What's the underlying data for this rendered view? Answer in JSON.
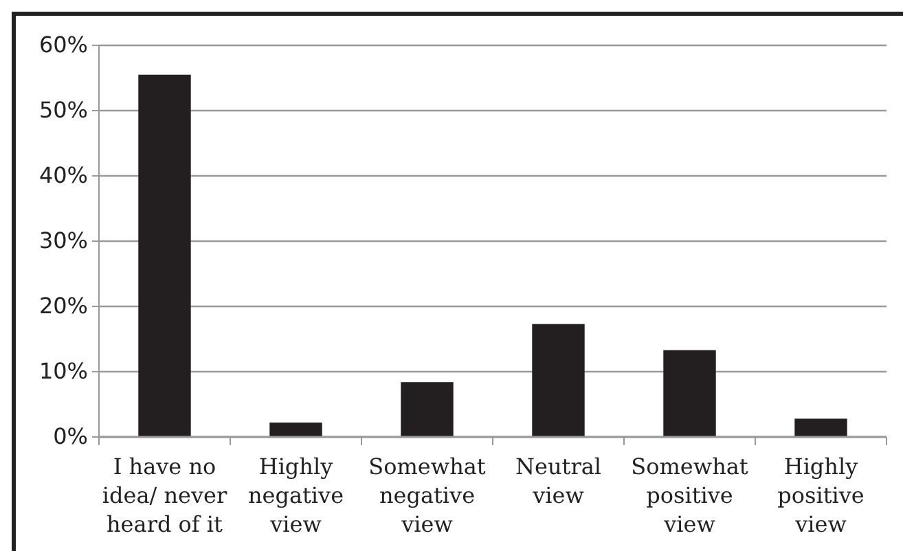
{
  "chart_data": {
    "type": "bar",
    "categories": [
      "I have no idea/ never heard of it",
      "Highly negative view",
      "Somewhat negative view",
      "Neutral view",
      "Somewhat positive view",
      "Highly positive view"
    ],
    "values": [
      0.555,
      0.022,
      0.084,
      0.173,
      0.133,
      0.028
    ],
    "color": "#231f20",
    "ylim": [
      0,
      0.6
    ],
    "yticks": [
      {
        "value": 0,
        "label": "0%"
      },
      {
        "value": 0.1,
        "label": "10%"
      },
      {
        "value": 0.2,
        "label": "20%"
      },
      {
        "value": 0.3,
        "label": "30%"
      },
      {
        "value": 0.4,
        "label": "40%"
      },
      {
        "value": 0.5,
        "label": "50%"
      },
      {
        "value": 0.6,
        "label": "60%"
      }
    ],
    "grid": "y"
  }
}
